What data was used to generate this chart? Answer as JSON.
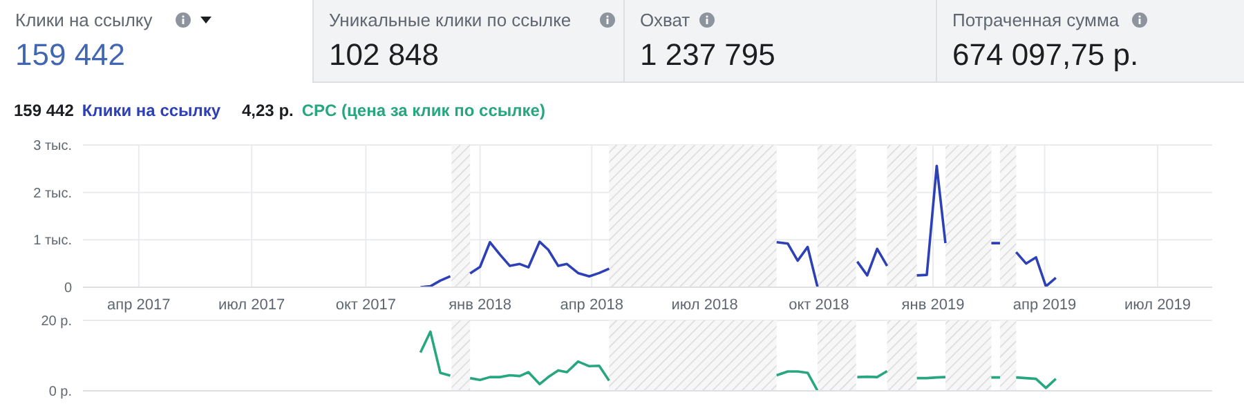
{
  "chart_data": [
    {
      "type": "other",
      "annotations": [
        "Клики на ссылку",
        "159 442",
        "Уникальные клики по ссылке",
        "102 848",
        "Охват",
        "1 237 795",
        "Потраченная сумма",
        "674 097,75 р."
      ]
    },
    {
      "type": "line",
      "legend": "top left",
      "annotations": [
        "159 442"
      ],
      "grid": true,
      "xlim": [
        "2017-02-15",
        "2019-08-14"
      ],
      "xticks": [
        {
          "value": "2017-04-01",
          "label": "апр 2017"
        },
        {
          "value": "2017-07-01",
          "label": "июл 2017"
        },
        {
          "value": "2017-10-01",
          "label": "окт 2017"
        },
        {
          "value": "2018-01-01",
          "label": "янв 2018"
        },
        {
          "value": "2018-04-01",
          "label": "апр 2018"
        },
        {
          "value": "2018-07-01",
          "label": "июл 2018"
        },
        {
          "value": "2018-10-01",
          "label": "окт 2018"
        },
        {
          "value": "2019-01-01",
          "label": "янв 2019"
        },
        {
          "value": "2019-04-01",
          "label": "апр 2019"
        },
        {
          "value": "2019-07-01",
          "label": "июл 2019"
        }
      ],
      "ylim": [
        0,
        3
      ],
      "yticks": [
        0,
        {
          "value": 1,
          "label": "1 тыс."
        },
        {
          "value": 2,
          "label": "2 тыс."
        },
        {
          "value": 3,
          "label": "3 тыс."
        }
      ],
      "bands": [
        {
          "axis": "x",
          "from": "2017-12-09",
          "to": "2017-12-24",
          "color": "#d9d9d9"
        },
        {
          "axis": "x",
          "from": "2018-04-15",
          "to": "2018-08-28",
          "color": "#d9d9d9"
        },
        {
          "axis": "x",
          "from": "2018-09-30",
          "to": "2018-10-31",
          "color": "#d9d9d9"
        },
        {
          "axis": "x",
          "from": "2018-11-25",
          "to": "2018-12-19",
          "color": "#d9d9d9"
        },
        {
          "axis": "x",
          "from": "2019-01-11",
          "to": "2019-02-17",
          "color": "#d9d9d9"
        },
        {
          "axis": "x",
          "from": "2019-02-24",
          "to": "2019-03-09",
          "color": "#d9d9d9"
        }
      ],
      "x": [
        "2017-11-14",
        "2017-11-22",
        "2017-11-30",
        "2017-12-08",
        "2017-12-16",
        "2017-12-24",
        "2018-01-01",
        "2018-01-09",
        "2018-01-17",
        "2018-01-25",
        "2018-02-02",
        "2018-02-09",
        "2018-02-18",
        "2018-02-25",
        "2018-03-05",
        "2018-03-12",
        "2018-03-21",
        "2018-03-30",
        "2018-04-07",
        "2018-04-15",
        "2018-06-15",
        "2018-08-28",
        "2018-09-06",
        "2018-09-14",
        "2018-09-22",
        "2018-09-30",
        "2018-10-15",
        "2018-11-01",
        "2018-11-09",
        "2018-11-17",
        "2018-11-25",
        "2018-12-08",
        "2018-12-19",
        "2018-12-27",
        "2019-01-04",
        "2019-01-11",
        "2019-02-01",
        "2019-02-17",
        "2019-02-24",
        "2019-03-02",
        "2019-03-09",
        "2019-03-17",
        "2019-03-25",
        "2019-04-02",
        "2019-04-10"
      ],
      "series": [
        {
          "name": "Клики на ссылку",
          "color": "#2d40b5",
          "values": [
            0,
            0.02,
            0.14,
            0.23,
            null,
            0.29,
            0.43,
            0.95,
            0.69,
            0.45,
            0.49,
            0.42,
            0.96,
            0.79,
            0.45,
            0.49,
            0.3,
            0.23,
            0.3,
            0.39,
            null,
            0.95,
            0.92,
            0.56,
            0.85,
            0,
            null,
            0.54,
            0.25,
            0.81,
            0.45,
            null,
            0.25,
            0.26,
            2.56,
            0.93,
            null,
            0.93,
            0.93,
            null,
            0.74,
            0.5,
            0.63,
            0.02,
            0.2
          ]
        }
      ]
    },
    {
      "type": "line",
      "legend": "top left",
      "annotations": [
        "4,23 р."
      ],
      "grid": true,
      "tick_labels": "y",
      "xlim": [
        "2017-02-15",
        "2019-08-14"
      ],
      "xticks": [
        {
          "value": "2017-04-01",
          "label": null
        },
        {
          "value": "2017-07-01",
          "label": null
        },
        {
          "value": "2017-10-01",
          "label": null
        },
        {
          "value": "2018-01-01",
          "label": null
        },
        {
          "value": "2018-04-01",
          "label": null
        },
        {
          "value": "2018-07-01",
          "label": null
        },
        {
          "value": "2018-10-01",
          "label": null
        },
        {
          "value": "2019-01-01",
          "label": null
        },
        {
          "value": "2019-04-01",
          "label": null
        },
        {
          "value": "2019-07-01",
          "label": null
        }
      ],
      "ylim": [
        0,
        20
      ],
      "yticks": [
        {
          "value": 0,
          "label": "0 р."
        },
        {
          "value": 20,
          "label": "20 р."
        }
      ],
      "bands": [
        {
          "axis": "x",
          "from": "2017-12-09",
          "to": "2017-12-24",
          "color": "#d9d9d9"
        },
        {
          "axis": "x",
          "from": "2018-04-15",
          "to": "2018-08-28",
          "color": "#d9d9d9"
        },
        {
          "axis": "x",
          "from": "2018-09-30",
          "to": "2018-10-31",
          "color": "#d9d9d9"
        },
        {
          "axis": "x",
          "from": "2018-11-25",
          "to": "2018-12-19",
          "color": "#d9d9d9"
        },
        {
          "axis": "x",
          "from": "2019-01-11",
          "to": "2019-02-17",
          "color": "#d9d9d9"
        },
        {
          "axis": "x",
          "from": "2019-02-24",
          "to": "2019-03-09",
          "color": "#d9d9d9"
        }
      ],
      "x": [
        "2017-11-14",
        "2017-11-22",
        "2017-11-30",
        "2017-12-08",
        "2017-12-16",
        "2017-12-24",
        "2018-01-01",
        "2018-01-09",
        "2018-01-17",
        "2018-01-25",
        "2018-02-02",
        "2018-02-09",
        "2018-02-18",
        "2018-02-25",
        "2018-03-05",
        "2018-03-12",
        "2018-03-21",
        "2018-03-30",
        "2018-04-07",
        "2018-04-15",
        "2018-06-15",
        "2018-08-28",
        "2018-09-06",
        "2018-09-14",
        "2018-09-22",
        "2018-09-30",
        "2018-10-15",
        "2018-11-01",
        "2018-11-09",
        "2018-11-17",
        "2018-11-25",
        "2018-12-08",
        "2018-12-19",
        "2018-12-27",
        "2019-01-04",
        "2019-01-11",
        "2019-02-01",
        "2019-02-17",
        "2019-02-24",
        "2019-03-02",
        "2019-03-09",
        "2019-03-17",
        "2019-03-25",
        "2019-04-02",
        "2019-04-10"
      ],
      "series": [
        {
          "name": "CPC (цена за клик по ссылке)",
          "color": "#27a67f",
          "values": [
            10.9,
            16.8,
            5.1,
            4.3,
            null,
            3.6,
            3.1,
            3.9,
            3.9,
            4.4,
            4.2,
            5.3,
            1.9,
            3.9,
            5.8,
            5.3,
            8.3,
            7.0,
            7.1,
            2.9,
            null,
            4.4,
            5.5,
            5.5,
            5.1,
            0,
            null,
            3.9,
            4.0,
            3.9,
            5.6,
            null,
            3.6,
            3.6,
            3.8,
            3.9,
            null,
            3.8,
            3.8,
            null,
            3.8,
            3.6,
            3.4,
            0.8,
            3.4
          ]
        }
      ]
    }
  ]
}
